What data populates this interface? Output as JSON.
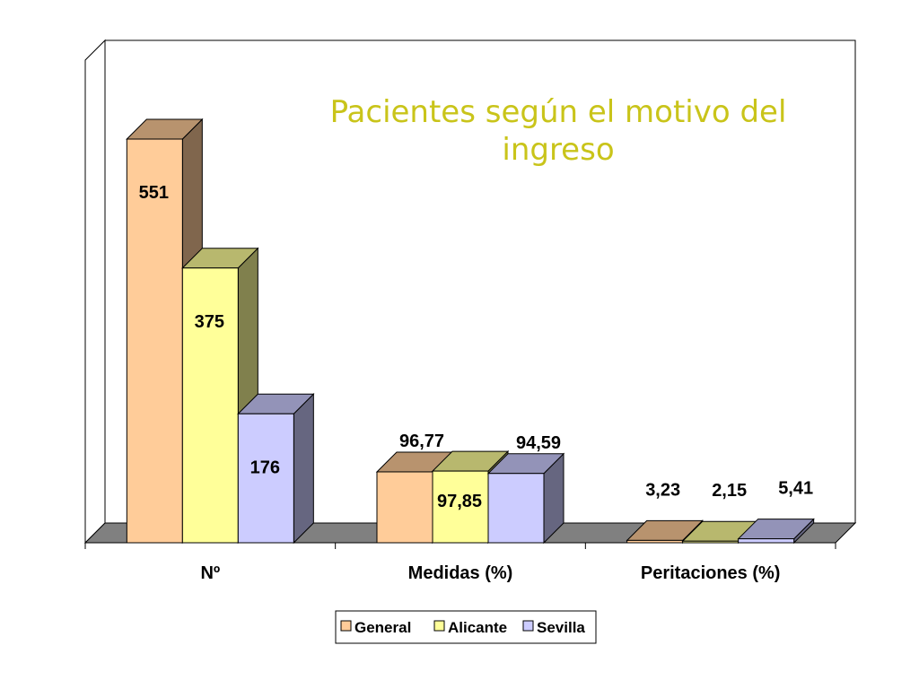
{
  "chart_data": {
    "type": "bar",
    "title_lines": [
      "Pacientes según el motivo del",
      "ingreso"
    ],
    "categories": [
      "Nº",
      "Medidas (%)",
      "Peritaciones (%)"
    ],
    "series": [
      {
        "name": "General",
        "values": [
          551,
          96.77,
          3.23
        ],
        "labels": [
          "551",
          "96,77",
          "3,23"
        ],
        "color": "#ffcc99"
      },
      {
        "name": "Alicante",
        "values": [
          375,
          97.85,
          2.15
        ],
        "labels": [
          "375",
          "97,85",
          "2,15"
        ],
        "color": "#ffff99"
      },
      {
        "name": "Sevilla",
        "values": [
          176,
          94.59,
          5.41
        ],
        "labels": [
          "176",
          "94,59",
          "5,41"
        ],
        "color": "#ccccff"
      }
    ],
    "ylim": [
      0,
      600
    ],
    "grid": false,
    "three_d": true,
    "legend_position": "bottom",
    "wall_color": "#ffffff",
    "floor_color": "#808080"
  }
}
